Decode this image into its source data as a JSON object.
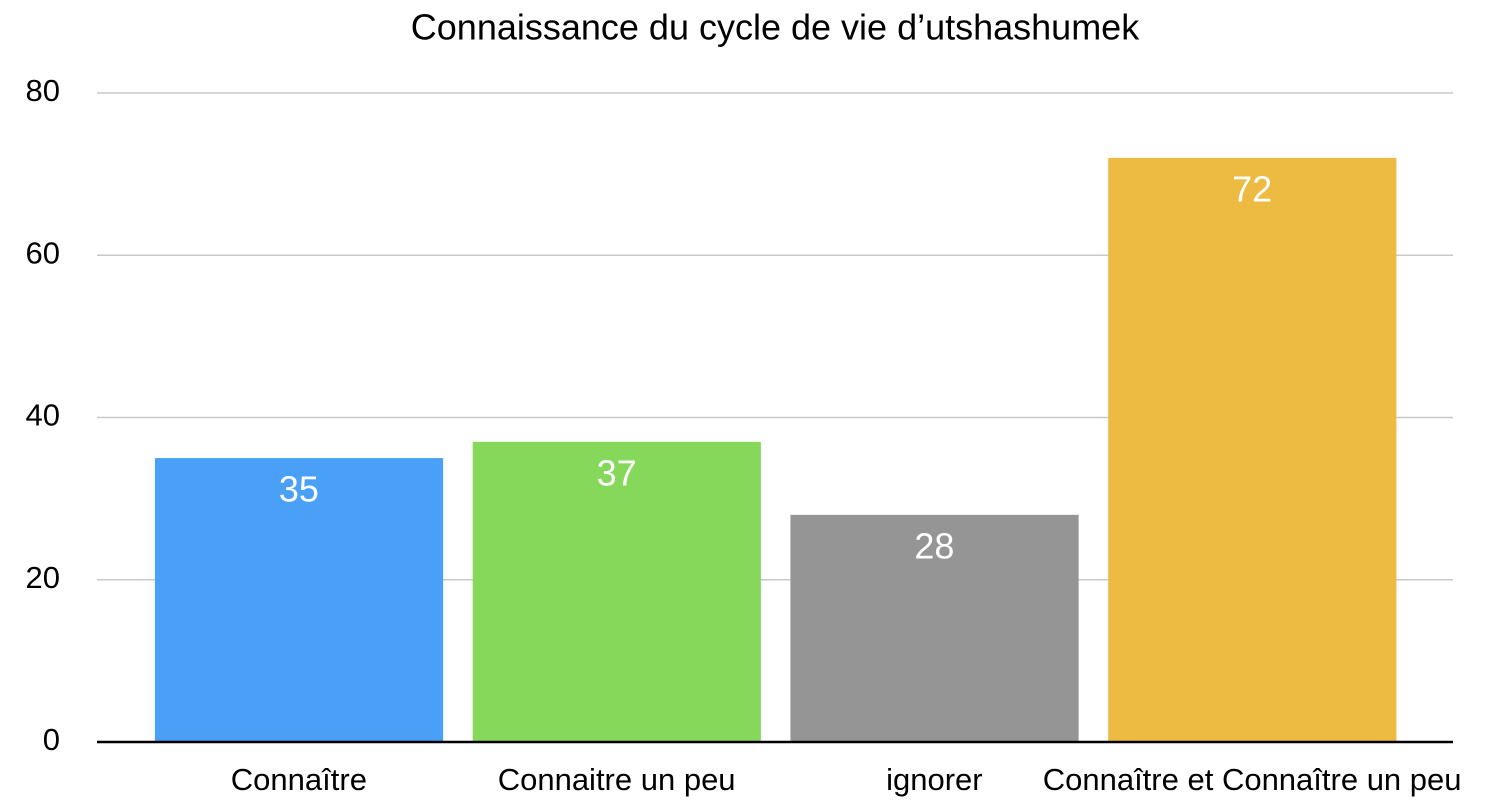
{
  "chart_data": {
    "type": "bar",
    "title": "Connaissance du cycle de vie d’utshashumek",
    "categories": [
      "Connaître",
      "Connaitre un peu",
      "ignorer",
      "Connaître et Connaître un peu"
    ],
    "values": [
      35,
      37,
      28,
      72
    ],
    "colors": [
      "#4a9ff7",
      "#86d85a",
      "#959595",
      "#edbb41"
    ],
    "ylim": [
      0,
      80
    ],
    "yticks": [
      0,
      20,
      40,
      60,
      80
    ],
    "grid": true
  }
}
